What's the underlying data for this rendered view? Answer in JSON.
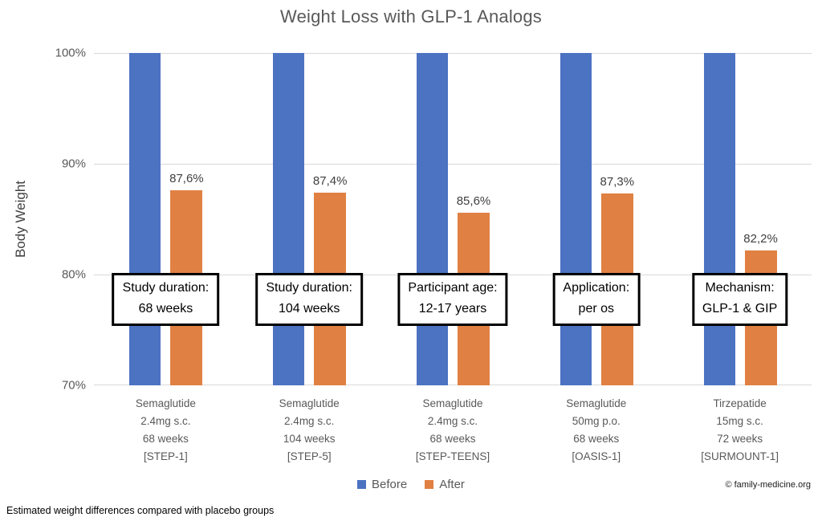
{
  "title": "Weight Loss with GLP-1 Analogs",
  "footnote": "Estimated weight differences compared with placebo groups",
  "copyright": "© family-medicine.org",
  "colors": {
    "before": "#4C72C2",
    "after": "#E08143",
    "gridline": "#D9D9D9",
    "axis_text": "#595959",
    "data_label_text": "#404040",
    "annotation_border": "#000000"
  },
  "chart_data": {
    "type": "bar",
    "title": "Weight Loss with GLP-1 Analogs",
    "xlabel": "",
    "ylabel": "Body Weight",
    "ylim": [
      70,
      100
    ],
    "grid": "horizontal",
    "legend_position": "bottom",
    "yticks": [
      {
        "value": 100,
        "label": "100%"
      },
      {
        "value": 90,
        "label": "90%"
      },
      {
        "value": 80,
        "label": "80%"
      },
      {
        "value": 70,
        "label": "70%"
      }
    ],
    "categories": [
      [
        "Semaglutide",
        "2.4mg s.c.",
        "68 weeks",
        "[STEP-1]"
      ],
      [
        "Semaglutide",
        "2.4mg s.c.",
        "104 weeks",
        "[STEP-5]"
      ],
      [
        "Semaglutide",
        "2.4mg s.c.",
        "68 weeks",
        "[STEP-TEENS]"
      ],
      [
        "Semaglutide",
        "50mg p.o.",
        "68 weeks",
        "[OASIS-1]"
      ],
      [
        "Tirzepatide",
        "15mg s.c.",
        "72 weeks",
        "[SURMOUNT-1]"
      ]
    ],
    "series": [
      {
        "name": "Before",
        "values": [
          100,
          100,
          100,
          100,
          100
        ]
      },
      {
        "name": "After",
        "values": [
          87.6,
          87.4,
          85.6,
          87.3,
          82.2
        ]
      }
    ],
    "data_labels": [
      "87,6%",
      "87,4%",
      "85,6%",
      "87,3%",
      "82,2%"
    ],
    "annotations": [
      [
        "Study duration:",
        "68 weeks"
      ],
      [
        "Study duration:",
        "104 weeks"
      ],
      [
        "Participant age:",
        "12-17 years"
      ],
      [
        "Application:",
        "per os"
      ],
      [
        "Mechanism:",
        "GLP-1 & GIP"
      ]
    ]
  }
}
